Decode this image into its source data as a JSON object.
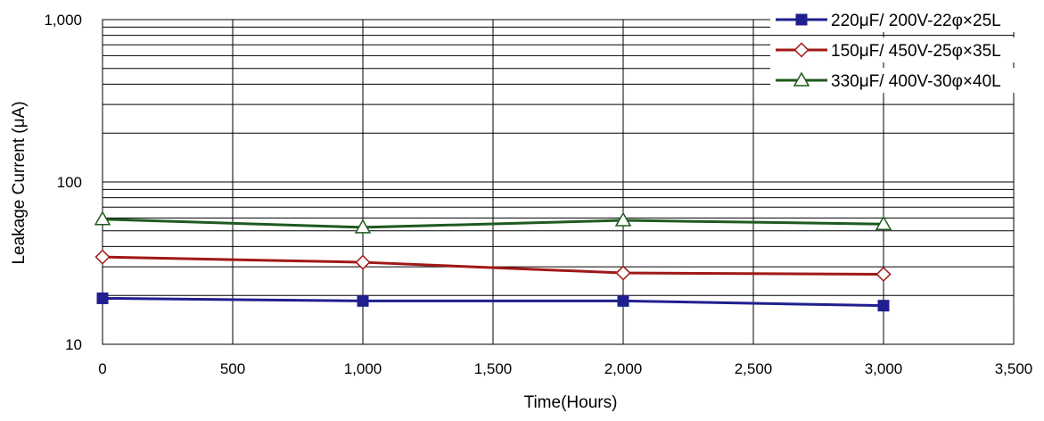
{
  "chart_data": {
    "type": "line",
    "title": "",
    "xlabel": "Time(Hours)",
    "ylabel": "Leakage Current (μA)",
    "y_scale": "log",
    "xlim": [
      0,
      3500
    ],
    "ylim": [
      10,
      1000
    ],
    "x_ticks": [
      0,
      500,
      1000,
      1500,
      2000,
      2500,
      3000,
      3500
    ],
    "x_tick_labels": [
      "0",
      "500",
      "1,000",
      "1,500",
      "2,000",
      "2,500",
      "3,000",
      "3,500"
    ],
    "y_ticks": [
      10,
      100,
      1000
    ],
    "y_tick_labels": [
      "10",
      "100",
      "1,000"
    ],
    "grid": true,
    "legend_position": "top-right",
    "series": [
      {
        "name": "220μF/ 200V-22φ×25L",
        "color": "#1f1f8f",
        "marker": "square-filled",
        "x": [
          0,
          1000,
          2000,
          3000
        ],
        "y": [
          19.2,
          18.5,
          18.5,
          17.3
        ]
      },
      {
        "name": "150μF/ 450V-25φ×35L",
        "color": "#a01818",
        "marker": "diamond-open",
        "x": [
          0,
          1000,
          2000,
          3000
        ],
        "y": [
          34.5,
          32,
          27.5,
          27
        ]
      },
      {
        "name": "330μF/ 400V-30φ×40L",
        "color": "#1f5a1f",
        "marker": "triangle-open",
        "x": [
          0,
          1000,
          2000,
          3000
        ],
        "y": [
          59,
          52.5,
          58,
          55
        ]
      }
    ]
  }
}
